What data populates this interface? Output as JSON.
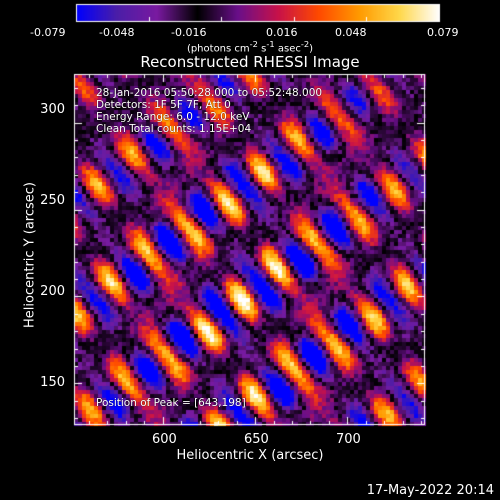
{
  "colorbar": {
    "ticks": [
      "-0.079",
      "-0.048",
      "-0.016",
      "0.016",
      "0.048",
      "0.079"
    ],
    "units_prefix": "(photons cm",
    "units_exp1": "-2",
    "units_mid": " s",
    "units_exp2": "-1",
    "units_mid2": " asec",
    "units_exp3": "-2",
    "units_suffix": ")",
    "colors": [
      "#0000ff",
      "#4b1ea8",
      "#7a1aa0",
      "#000000",
      "#6a0f8a",
      "#c8124a",
      "#ff4a00",
      "#ff9a00",
      "#ffd84a",
      "#ffffff"
    ]
  },
  "plot": {
    "title": "Reconstructed RHESSI Image",
    "annotations": [
      "28-Jan-2016 05:50:28.000 to 05:52:48.000",
      "Detectors: 1F 5F 7F, Att 0",
      "Energy Range: 6.0 - 12.0 keV",
      "Clean     Total counts: 1.15E+04"
    ],
    "peak_label": "Position of Peak = [643,198]",
    "xlabel": "Heliocentric X (arcsec)",
    "ylabel": "Heliocentric Y (arcsec)",
    "x_ticks": [
      "600",
      "650",
      "700"
    ],
    "y_ticks": [
      "300",
      "250",
      "200",
      "150"
    ],
    "x_range": [
      552,
      742
    ],
    "y_range": [
      126,
      328
    ]
  },
  "footer": {
    "date": "17-May-2022 20:14"
  }
}
